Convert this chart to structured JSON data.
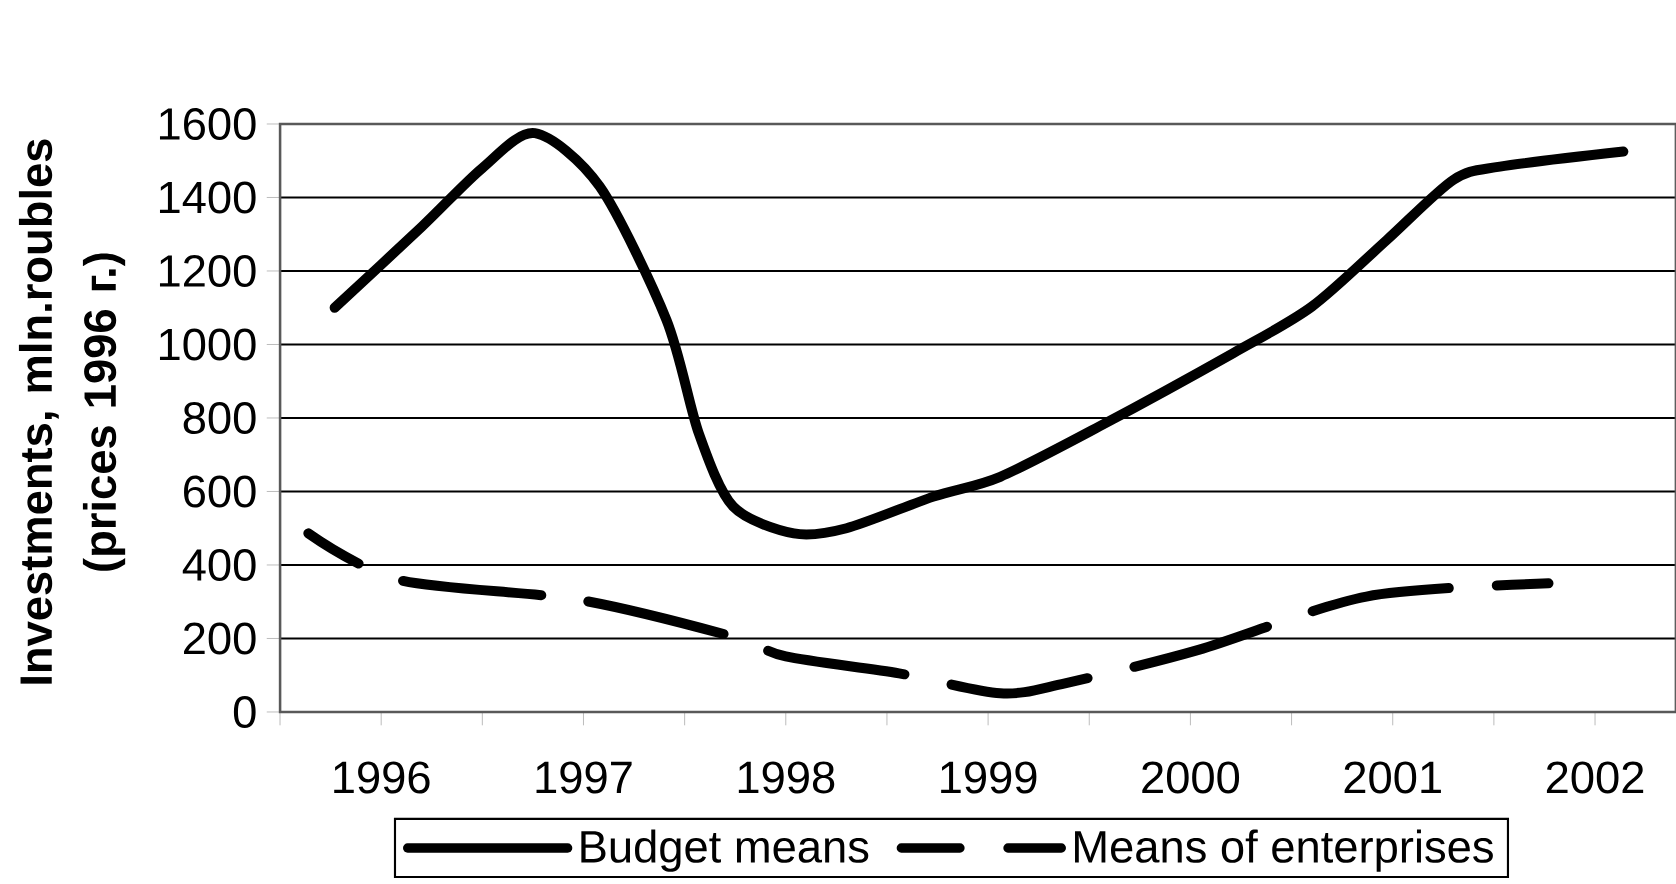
{
  "chart_data": {
    "type": "line",
    "ylabel": "Investments, mln.roubles (prices 1996 г.)",
    "xlim": [
      1995.5,
      2002.4
    ],
    "ylim": [
      0,
      1600
    ],
    "xticks": [
      {
        "value": 1995.5,
        "label": null
      },
      1996,
      {
        "value": 1996.5,
        "label": null
      },
      1997,
      {
        "value": 1997.5,
        "label": null
      },
      1998,
      {
        "value": 1998.5,
        "label": null
      },
      1999,
      {
        "value": 1999.5,
        "label": null
      },
      2000,
      {
        "value": 2000.5,
        "label": null
      },
      2001,
      {
        "value": 2001.5,
        "label": null
      },
      2002
    ],
    "yticks": [
      0,
      200,
      400,
      600,
      800,
      1000,
      1200,
      1400,
      1600
    ],
    "grid": "y",
    "legend": "bottom",
    "marker": "none",
    "series": [
      {
        "name": "Budget means",
        "color": "#000000",
        "line_style": "solid",
        "x": [
          1995.77,
          1996.2,
          1996.5,
          1996.76,
          1997.08,
          1997.41,
          1997.57,
          1997.74,
          1998.04,
          1998.3,
          1998.73,
          1999.06,
          1999.55,
          2000.21,
          2000.6,
          2000.97,
          2001.3,
          2001.53,
          2002.14
        ],
        "values": [
          1100,
          1320,
          1480,
          1575,
          1430,
          1067,
          758,
          559,
          486,
          500,
          586,
          640,
          777,
          976,
          1103,
          1284,
          1448,
          1484,
          1525
        ]
      },
      {
        "name": "Means of enterprises",
        "color": "#000000",
        "line_style": "dashed",
        "x": [
          1995.64,
          1996.09,
          1996.98,
          1997.74,
          1998.0,
          1998.56,
          1999.06,
          1999.38,
          2000.04,
          2000.87,
          2001.77
        ],
        "values": [
          486,
          359,
          305,
          205,
          151,
          105,
          51,
          78,
          169,
          314,
          350
        ]
      }
    ]
  }
}
